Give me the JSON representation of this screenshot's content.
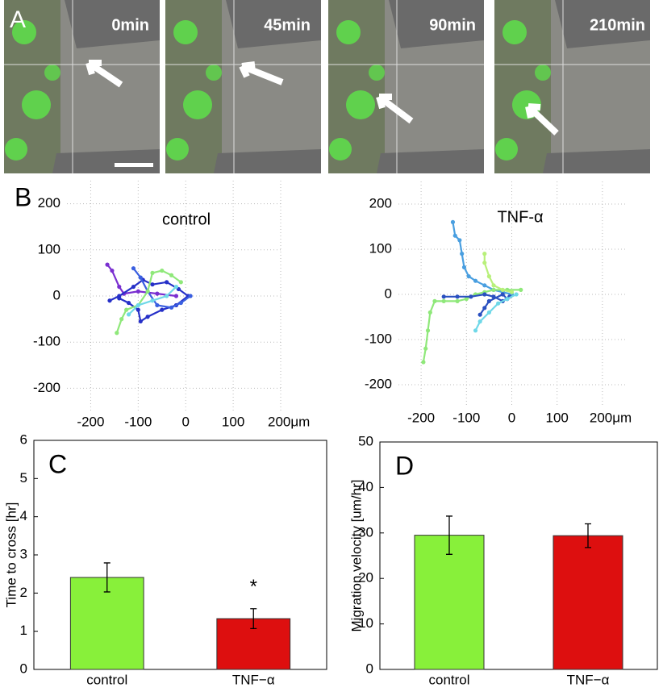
{
  "panel_a": {
    "label": "A",
    "frames": [
      "0min",
      "45min",
      "90min",
      "210min"
    ]
  },
  "chart_data": [
    {
      "type": "line",
      "panel_label": "B",
      "title": "control",
      "grid": true,
      "markers": true,
      "xlim": [
        -250,
        200
      ],
      "ylim": [
        -250,
        250
      ],
      "xticks": [
        -200,
        -100,
        0,
        100,
        {
          "value": 200,
          "label": "200μm"
        }
      ],
      "yticks": [
        -200,
        -100,
        0,
        100,
        200
      ],
      "series": [
        {
          "color": "#7a2fd0",
          "x": [
            -165,
            -155,
            -140,
            -130,
            -100,
            -60,
            -20
          ],
          "y": [
            68,
            55,
            20,
            5,
            10,
            5,
            0
          ]
        },
        {
          "color": "#2630c8",
          "x": [
            -160,
            -140,
            -110,
            -90,
            -70,
            -40,
            -15,
            5,
            -20,
            -50,
            -80,
            -95,
            -100,
            -120,
            -140
          ],
          "y": [
            -10,
            0,
            20,
            35,
            25,
            30,
            15,
            0,
            -20,
            -30,
            -45,
            -55,
            -30,
            -15,
            -5
          ]
        },
        {
          "color": "#3a5fe0",
          "x": [
            -110,
            -95,
            -80,
            -60,
            -30,
            -10,
            10
          ],
          "y": [
            60,
            40,
            10,
            -20,
            -25,
            -15,
            0
          ]
        },
        {
          "color": "#8fe87a",
          "x": [
            -145,
            -135,
            -125,
            -100,
            -80,
            -70,
            -50,
            -30,
            -10
          ],
          "y": [
            -80,
            -50,
            -30,
            -20,
            10,
            50,
            55,
            45,
            30
          ]
        },
        {
          "color": "#6fd8e8",
          "x": [
            -120,
            -100,
            -70,
            -40,
            -20
          ],
          "y": [
            -40,
            -20,
            -10,
            0,
            20
          ]
        }
      ]
    },
    {
      "type": "line",
      "title": "TNF-α",
      "grid": true,
      "markers": true,
      "xlim": [
        -250,
        250
      ],
      "ylim": [
        -250,
        250
      ],
      "xticks": [
        -200,
        -100,
        0,
        100,
        {
          "value": 200,
          "label": "200μm"
        }
      ],
      "yticks": [
        -200,
        -100,
        0,
        100,
        200
      ],
      "series": [
        {
          "color": "#4a9fe0",
          "x": [
            -130,
            -125,
            -115,
            -110,
            -105,
            -95,
            -80,
            -60,
            -40,
            -20,
            0
          ],
          "y": [
            160,
            130,
            120,
            90,
            60,
            40,
            30,
            20,
            10,
            5,
            0
          ]
        },
        {
          "color": "#8fe87a",
          "x": [
            -195,
            -190,
            -185,
            -180,
            -170,
            -150,
            -120,
            -100,
            -80,
            -60,
            -40,
            -10,
            20
          ],
          "y": [
            -150,
            -120,
            -80,
            -40,
            -15,
            -15,
            -15,
            -10,
            0,
            5,
            10,
            10,
            10
          ]
        },
        {
          "color": "#b8f07a",
          "x": [
            -60,
            -60,
            -50,
            -40,
            -20,
            0
          ],
          "y": [
            90,
            70,
            40,
            20,
            10,
            5
          ]
        },
        {
          "color": "#2a50c0",
          "x": [
            -150,
            -120,
            -90,
            -60,
            -40,
            -20,
            -5,
            -10,
            -20,
            -50,
            -70,
            -60
          ],
          "y": [
            -5,
            -5,
            -5,
            0,
            -5,
            -15,
            -5,
            -10,
            0,
            -15,
            -45,
            -30
          ]
        },
        {
          "color": "#6fd8e8",
          "x": [
            -80,
            -70,
            -50,
            -30,
            -10,
            10
          ],
          "y": [
            -80,
            -60,
            -40,
            -20,
            -10,
            0
          ]
        }
      ]
    },
    {
      "type": "bar",
      "panel_label": "C",
      "ylabel": "Time to cross [hr]",
      "categories": [
        "control",
        "TNF−α"
      ],
      "values": [
        2.41,
        1.33
      ],
      "errors": [
        0.38,
        0.26
      ],
      "colors": [
        "#88f03a",
        "#dd0f0f"
      ],
      "ylim": [
        0,
        6
      ],
      "yticks": [
        0,
        1,
        2,
        3,
        4,
        5,
        6
      ],
      "annotations": [
        {
          "text": "*",
          "category": 1
        }
      ]
    },
    {
      "type": "bar",
      "panel_label": "D",
      "ylabel": "Migration velocity [um/hr]",
      "categories": [
        "control",
        "TNF−α"
      ],
      "values": [
        29.5,
        29.4
      ],
      "errors": [
        4.2,
        2.6
      ],
      "colors": [
        "#88f03a",
        "#dd0f0f"
      ],
      "ylim": [
        0,
        50
      ],
      "yticks": [
        0,
        10,
        20,
        30,
        40,
        50
      ]
    }
  ]
}
